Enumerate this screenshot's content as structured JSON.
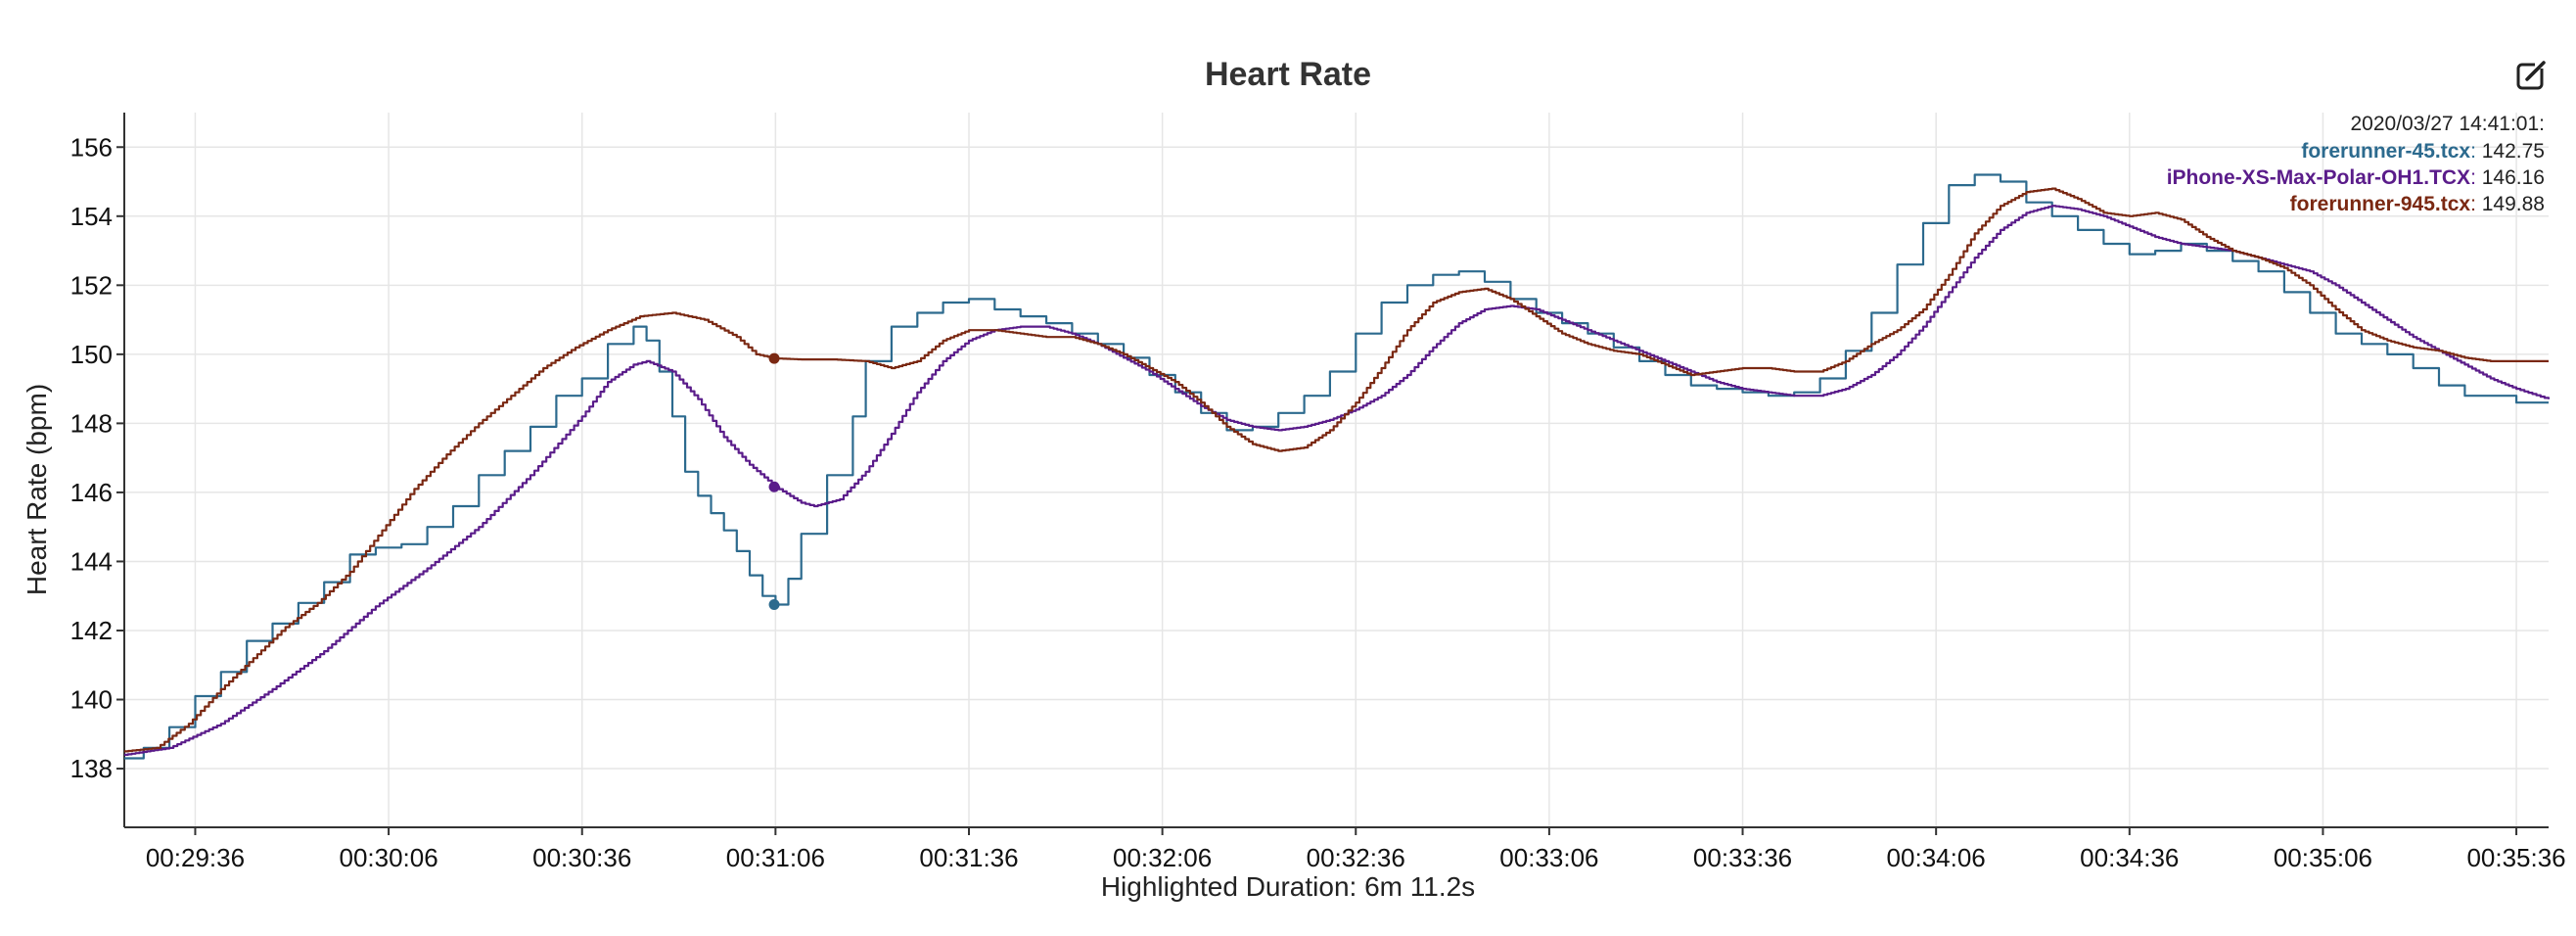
{
  "chart_data": {
    "type": "line",
    "title": "Heart Rate",
    "xlabel": "Highlighted Duration: 6m 11.2s",
    "ylabel": "Heart Rate (bpm)",
    "xlim_seconds": [
      1765,
      2141
    ],
    "ylim": [
      136.3,
      157.0
    ],
    "grid": true,
    "x_ticks": [
      {
        "sec": 1776,
        "label": "00:29:36"
      },
      {
        "sec": 1806,
        "label": "00:30:06"
      },
      {
        "sec": 1836,
        "label": "00:30:36"
      },
      {
        "sec": 1866,
        "label": "00:31:06"
      },
      {
        "sec": 1896,
        "label": "00:31:36"
      },
      {
        "sec": 1926,
        "label": "00:32:06"
      },
      {
        "sec": 1956,
        "label": "00:32:36"
      },
      {
        "sec": 1986,
        "label": "00:33:06"
      },
      {
        "sec": 2016,
        "label": "00:33:36"
      },
      {
        "sec": 2046,
        "label": "00:34:06"
      },
      {
        "sec": 2076,
        "label": "00:34:36"
      },
      {
        "sec": 2106,
        "label": "00:35:06"
      },
      {
        "sec": 2136,
        "label": "00:35:36"
      }
    ],
    "y_ticks": [
      138,
      140,
      142,
      144,
      146,
      148,
      150,
      152,
      154,
      156
    ],
    "legend": {
      "placement": "top-right",
      "header": "2020/03/27 14:41:01:"
    },
    "highlight_sec": 1865.8,
    "series": [
      {
        "name": "forerunner-45.tcx",
        "color": "#2c6a8e",
        "value_label": "142.75",
        "highlight_value": 142.75,
        "step": true,
        "x": [
          1765,
          1768,
          1772,
          1776,
          1780,
          1784,
          1788,
          1792,
          1796,
          1800,
          1804,
          1808,
          1812,
          1816,
          1820,
          1824,
          1828,
          1832,
          1836,
          1840,
          1844,
          1846,
          1848,
          1850,
          1852,
          1854,
          1856,
          1858,
          1860,
          1862,
          1864,
          1866,
          1868,
          1870,
          1874,
          1878,
          1880,
          1884,
          1888,
          1892,
          1896,
          1900,
          1904,
          1908,
          1912,
          1916,
          1920,
          1924,
          1928,
          1932,
          1936,
          1940,
          1944,
          1948,
          1952,
          1956,
          1960,
          1964,
          1968,
          1972,
          1976,
          1980,
          1984,
          1988,
          1992,
          1996,
          2000,
          2004,
          2008,
          2012,
          2016,
          2020,
          2024,
          2028,
          2032,
          2036,
          2040,
          2044,
          2048,
          2052,
          2056,
          2060,
          2064,
          2068,
          2072,
          2076,
          2080,
          2084,
          2088,
          2092,
          2096,
          2100,
          2104,
          2108,
          2112,
          2116,
          2120,
          2124,
          2128,
          2132,
          2136,
          2141
        ],
        "y": [
          138.3,
          138.6,
          139.2,
          140.1,
          140.8,
          141.7,
          142.2,
          142.8,
          143.4,
          144.2,
          144.4,
          144.5,
          145.0,
          145.6,
          146.5,
          147.2,
          147.9,
          148.8,
          149.3,
          150.3,
          150.8,
          150.4,
          149.5,
          148.2,
          146.6,
          145.9,
          145.4,
          144.9,
          144.3,
          143.6,
          143.0,
          142.75,
          143.5,
          144.8,
          146.5,
          148.2,
          149.8,
          150.8,
          151.2,
          151.5,
          151.6,
          151.3,
          151.1,
          150.9,
          150.6,
          150.3,
          149.9,
          149.4,
          148.9,
          148.3,
          147.8,
          147.9,
          148.3,
          148.8,
          149.5,
          150.6,
          151.5,
          152.0,
          152.3,
          152.4,
          152.1,
          151.6,
          151.2,
          150.9,
          150.6,
          150.2,
          149.8,
          149.4,
          149.1,
          149.0,
          148.9,
          148.8,
          148.9,
          149.3,
          150.1,
          151.2,
          152.6,
          153.8,
          154.9,
          155.2,
          155.0,
          154.4,
          154.0,
          153.6,
          153.2,
          152.9,
          153.0,
          153.2,
          153.0,
          152.7,
          152.4,
          151.8,
          151.2,
          150.6,
          150.3,
          150.0,
          149.6,
          149.1,
          148.8,
          148.8,
          148.6,
          148.6
        ]
      },
      {
        "name": "iPhone-XS-Max-Polar-OH1.TCX",
        "color": "#5a1c8a",
        "value_label": "146.16",
        "highlight_value": 146.16,
        "step": false,
        "x": [
          1765,
          1772,
          1780,
          1788,
          1796,
          1804,
          1812,
          1820,
          1828,
          1836,
          1840,
          1844,
          1846,
          1850,
          1854,
          1858,
          1862,
          1866,
          1870,
          1872,
          1876,
          1880,
          1884,
          1888,
          1892,
          1896,
          1900,
          1904,
          1908,
          1912,
          1916,
          1920,
          1924,
          1928,
          1932,
          1936,
          1940,
          1944,
          1948,
          1952,
          1956,
          1960,
          1964,
          1968,
          1972,
          1976,
          1980,
          1984,
          1988,
          1992,
          1996,
          2000,
          2004,
          2008,
          2012,
          2016,
          2020,
          2024,
          2028,
          2032,
          2036,
          2040,
          2044,
          2048,
          2052,
          2056,
          2060,
          2064,
          2068,
          2072,
          2076,
          2080,
          2084,
          2088,
          2092,
          2096,
          2100,
          2104,
          2108,
          2112,
          2116,
          2120,
          2124,
          2128,
          2132,
          2136,
          2141
        ],
        "y": [
          138.4,
          138.6,
          139.3,
          140.3,
          141.4,
          142.7,
          143.8,
          145.0,
          146.5,
          148.2,
          149.2,
          149.7,
          149.8,
          149.5,
          148.7,
          147.6,
          146.8,
          146.16,
          145.7,
          145.6,
          145.8,
          146.6,
          147.7,
          148.9,
          149.8,
          150.4,
          150.7,
          150.8,
          150.8,
          150.6,
          150.3,
          149.9,
          149.5,
          149.0,
          148.5,
          148.1,
          147.9,
          147.8,
          147.9,
          148.1,
          148.4,
          148.8,
          149.4,
          150.2,
          150.9,
          151.3,
          151.4,
          151.3,
          151.0,
          150.7,
          150.4,
          150.1,
          149.8,
          149.5,
          149.2,
          149.0,
          148.9,
          148.8,
          148.8,
          149.0,
          149.4,
          150.0,
          150.8,
          151.8,
          152.8,
          153.6,
          154.1,
          154.3,
          154.2,
          154.0,
          153.7,
          153.4,
          153.2,
          153.1,
          153.0,
          152.8,
          152.6,
          152.4,
          152.0,
          151.5,
          151.0,
          150.5,
          150.1,
          149.7,
          149.3,
          149.0,
          148.7
        ]
      },
      {
        "name": "forerunner-945.tcx",
        "color": "#7a2812",
        "value_label": "149.88",
        "highlight_value": 149.88,
        "step": false,
        "x": [
          1765,
          1770,
          1775,
          1780,
          1785,
          1790,
          1795,
          1800,
          1805,
          1810,
          1815,
          1820,
          1825,
          1830,
          1835,
          1840,
          1845,
          1850,
          1855,
          1860,
          1863,
          1866,
          1870,
          1875,
          1880,
          1884,
          1888,
          1892,
          1896,
          1900,
          1904,
          1908,
          1912,
          1916,
          1920,
          1924,
          1928,
          1932,
          1936,
          1940,
          1944,
          1948,
          1952,
          1956,
          1960,
          1964,
          1968,
          1972,
          1976,
          1980,
          1984,
          1988,
          1992,
          1996,
          2000,
          2004,
          2008,
          2012,
          2016,
          2020,
          2024,
          2028,
          2032,
          2036,
          2040,
          2044,
          2048,
          2052,
          2056,
          2060,
          2064,
          2068,
          2072,
          2076,
          2080,
          2084,
          2088,
          2092,
          2096,
          2100,
          2104,
          2108,
          2112,
          2116,
          2120,
          2124,
          2128,
          2132,
          2136,
          2141
        ],
        "y": [
          138.5,
          138.6,
          139.3,
          140.3,
          141.2,
          142.1,
          142.8,
          143.7,
          144.9,
          146.1,
          147.1,
          148.0,
          148.8,
          149.6,
          150.2,
          150.7,
          151.1,
          151.2,
          151.0,
          150.5,
          150.0,
          149.88,
          149.85,
          149.85,
          149.8,
          149.6,
          149.8,
          150.4,
          150.7,
          150.7,
          150.6,
          150.5,
          150.5,
          150.3,
          150.0,
          149.6,
          149.2,
          148.6,
          147.9,
          147.4,
          147.2,
          147.3,
          147.8,
          148.6,
          149.6,
          150.7,
          151.5,
          151.8,
          151.9,
          151.6,
          151.1,
          150.6,
          150.3,
          150.1,
          150.0,
          149.7,
          149.4,
          149.5,
          149.6,
          149.6,
          149.5,
          149.5,
          149.8,
          150.3,
          150.7,
          151.3,
          152.3,
          153.5,
          154.3,
          154.7,
          154.8,
          154.5,
          154.1,
          154.0,
          154.1,
          153.9,
          153.4,
          153.0,
          152.8,
          152.5,
          152.0,
          151.3,
          150.7,
          150.4,
          150.2,
          150.1,
          149.9,
          149.8,
          149.8,
          149.8
        ]
      }
    ]
  }
}
